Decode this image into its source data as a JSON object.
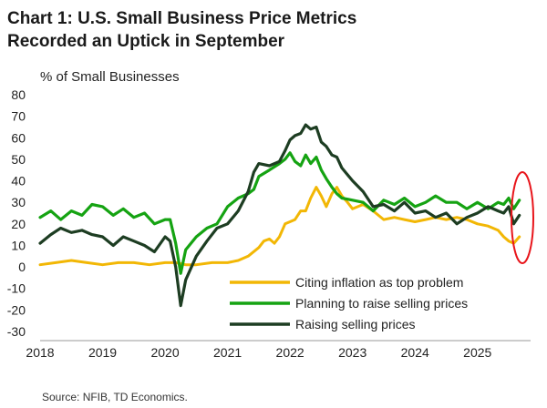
{
  "title_line1": "Chart 1: U.S. Small Business Price Metrics",
  "title_line2": "Recorded an Uptick in September",
  "source": "Source: NFIB, TD Economics.",
  "chart_data": {
    "type": "line",
    "ylabel": "% of Small Businesses",
    "xlabel": "",
    "ylim": [
      -30,
      80
    ],
    "xlim": [
      2018.0,
      2025.85
    ],
    "yticks": [
      80,
      70,
      60,
      50,
      40,
      30,
      20,
      10,
      0,
      -10,
      -20,
      -30
    ],
    "xticks": [
      "2018",
      "2019",
      "2020",
      "2021",
      "2022",
      "2023",
      "2024",
      "2025"
    ],
    "grid": false,
    "legend_position": "bottom-right",
    "annotation": "red ellipse highlighting latest readings (Sep 2025)",
    "series": [
      {
        "name": "Citing inflation as top problem",
        "color": "#f2b705",
        "x": [
          2018.0,
          2018.25,
          2018.5,
          2018.75,
          2019.0,
          2019.25,
          2019.5,
          2019.75,
          2020.0,
          2020.17,
          2020.33,
          2020.5,
          2020.75,
          2021.0,
          2021.17,
          2021.33,
          2021.5,
          2021.58,
          2021.67,
          2021.75,
          2021.83,
          2021.92,
          2022.0,
          2022.08,
          2022.17,
          2022.25,
          2022.33,
          2022.42,
          2022.5,
          2022.58,
          2022.67,
          2022.75,
          2022.83,
          2022.92,
          2023.0,
          2023.17,
          2023.33,
          2023.5,
          2023.67,
          2023.83,
          2024.0,
          2024.17,
          2024.33,
          2024.5,
          2024.67,
          2024.83,
          2025.0,
          2025.17,
          2025.33,
          2025.42,
          2025.5,
          2025.58,
          2025.67
        ],
        "values": [
          1,
          2,
          3,
          2,
          1,
          2,
          2,
          1,
          2,
          2,
          1,
          1,
          2,
          2,
          3,
          5,
          9,
          12,
          13,
          11,
          14,
          20,
          21,
          22,
          26,
          26,
          32,
          37,
          33,
          28,
          34,
          37,
          33,
          30,
          27,
          29,
          26,
          22,
          23,
          22,
          21,
          22,
          23,
          22,
          23,
          22,
          20,
          19,
          17,
          14,
          12,
          11,
          14
        ]
      },
      {
        "name": "Planning to raise selling prices",
        "color": "#15a312",
        "x": [
          2018.0,
          2018.17,
          2018.33,
          2018.5,
          2018.67,
          2018.83,
          2019.0,
          2019.17,
          2019.33,
          2019.5,
          2019.67,
          2019.83,
          2020.0,
          2020.08,
          2020.17,
          2020.25,
          2020.33,
          2020.5,
          2020.67,
          2020.83,
          2021.0,
          2021.17,
          2021.33,
          2021.42,
          2021.5,
          2021.67,
          2021.83,
          2021.92,
          2022.0,
          2022.08,
          2022.17,
          2022.25,
          2022.33,
          2022.42,
          2022.5,
          2022.58,
          2022.67,
          2022.75,
          2022.83,
          2023.0,
          2023.17,
          2023.33,
          2023.5,
          2023.67,
          2023.83,
          2024.0,
          2024.17,
          2024.33,
          2024.5,
          2024.67,
          2024.83,
          2025.0,
          2025.17,
          2025.33,
          2025.42,
          2025.5,
          2025.58,
          2025.67
        ],
        "values": [
          23,
          26,
          22,
          26,
          24,
          29,
          28,
          24,
          27,
          23,
          25,
          20,
          22,
          22,
          11,
          -3,
          8,
          14,
          18,
          20,
          28,
          32,
          34,
          36,
          42,
          45,
          48,
          50,
          53,
          49,
          47,
          52,
          48,
          51,
          45,
          41,
          37,
          34,
          32,
          31,
          30,
          26,
          31,
          29,
          32,
          28,
          30,
          33,
          30,
          30,
          27,
          30,
          27,
          30,
          29,
          32,
          27,
          31
        ]
      },
      {
        "name": "Raising selling prices",
        "color": "#1d3d22",
        "x": [
          2018.0,
          2018.17,
          2018.33,
          2018.5,
          2018.67,
          2018.83,
          2019.0,
          2019.17,
          2019.33,
          2019.5,
          2019.67,
          2019.83,
          2020.0,
          2020.08,
          2020.17,
          2020.25,
          2020.33,
          2020.5,
          2020.67,
          2020.83,
          2021.0,
          2021.17,
          2021.33,
          2021.42,
          2021.5,
          2021.67,
          2021.83,
          2021.92,
          2022.0,
          2022.08,
          2022.17,
          2022.25,
          2022.33,
          2022.42,
          2022.5,
          2022.58,
          2022.67,
          2022.75,
          2022.83,
          2023.0,
          2023.17,
          2023.33,
          2023.5,
          2023.67,
          2023.83,
          2024.0,
          2024.17,
          2024.33,
          2024.5,
          2024.67,
          2024.83,
          2025.0,
          2025.17,
          2025.33,
          2025.42,
          2025.5,
          2025.58,
          2025.67
        ],
        "values": [
          11,
          15,
          18,
          16,
          17,
          15,
          14,
          10,
          14,
          12,
          10,
          7,
          14,
          12,
          0,
          -18,
          -6,
          5,
          12,
          18,
          20,
          26,
          35,
          44,
          48,
          47,
          49,
          54,
          59,
          61,
          62,
          66,
          64,
          65,
          58,
          56,
          52,
          51,
          46,
          40,
          35,
          28,
          29,
          26,
          30,
          25,
          26,
          23,
          25,
          20,
          23,
          25,
          28,
          26,
          25,
          28,
          20,
          24
        ]
      }
    ]
  }
}
